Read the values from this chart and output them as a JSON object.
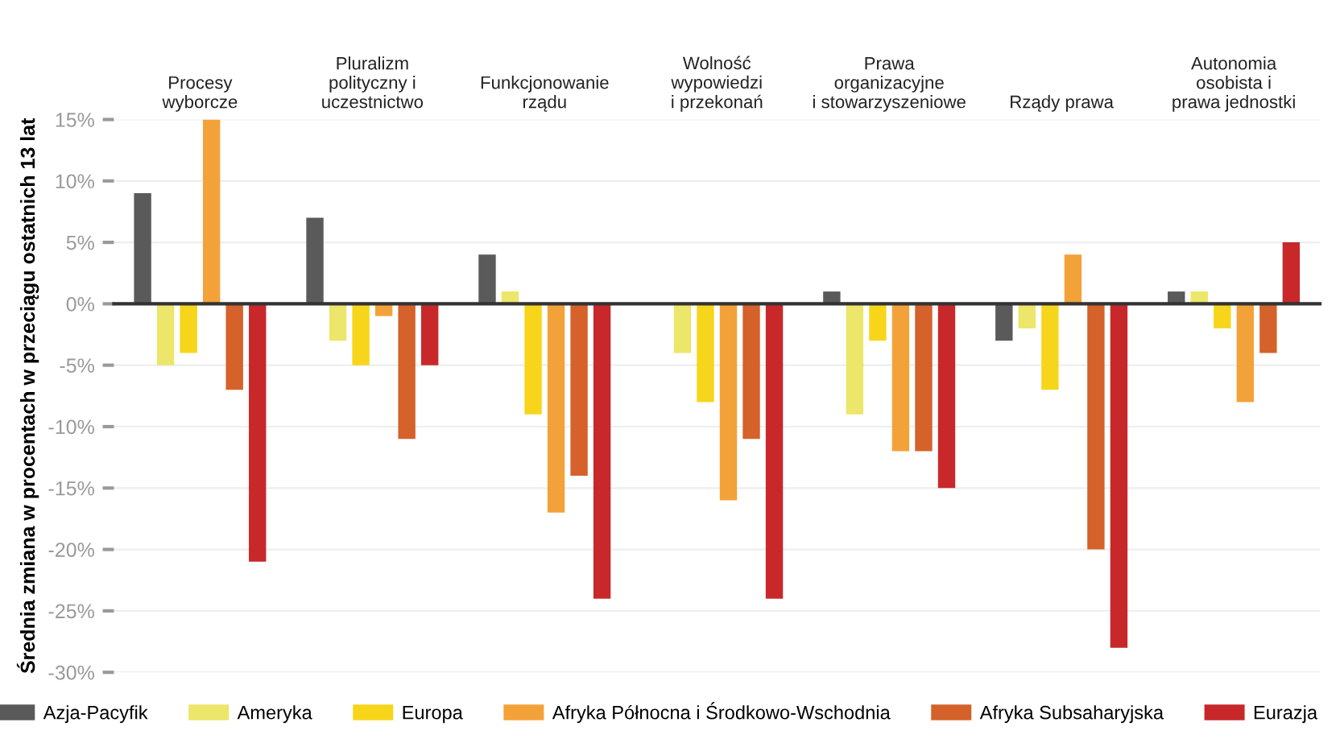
{
  "chart_data": {
    "type": "bar",
    "ylabel": "Średnia zmiana w procentach w przeciągu ostatnich 13 lat",
    "categories": [
      "Procesy\nwyborcze",
      "Pluralizm\npolityczny i\nuczestnictwo",
      "Funkcjonowanie\nrządu",
      "Wolność\nwypowiedzi\ni przekonań",
      "Prawa\norganizacyjne\ni stowarzyszeniowe",
      "Rządy prawa",
      "Autonomia\nosobista i\nprawa jednostki"
    ],
    "series": [
      {
        "name": "Azja-Pacyfik",
        "color": "#5a5a5a",
        "values": [
          9,
          7,
          4,
          0,
          1,
          -3,
          1
        ]
      },
      {
        "name": "Ameryka",
        "color": "#ece66a",
        "values": [
          -5,
          -3,
          1,
          -4,
          -9,
          -2,
          1
        ]
      },
      {
        "name": "Europa",
        "color": "#f7d51a",
        "values": [
          -4,
          -5,
          -9,
          -8,
          -3,
          -7,
          -2
        ]
      },
      {
        "name": "Afryka Północna i Środkowo-Wschodnia",
        "color": "#f3a23a",
        "values": [
          15,
          -1,
          -17,
          -16,
          -12,
          4,
          -8
        ]
      },
      {
        "name": "Afryka Subsaharyjska",
        "color": "#d4622a",
        "values": [
          -7,
          -11,
          -14,
          -11,
          -12,
          -20,
          -4
        ]
      },
      {
        "name": "Eurazja",
        "color": "#c8282a",
        "values": [
          -21,
          -5,
          -24,
          -24,
          -15,
          -28,
          5
        ]
      }
    ],
    "ylim": [
      -30,
      15
    ],
    "yticks": [
      {
        "value": 15,
        "label": "15%"
      },
      {
        "value": 10,
        "label": "10%"
      },
      {
        "value": 5,
        "label": "5%"
      },
      {
        "value": 0,
        "label": "0%"
      },
      {
        "value": -5,
        "label": "-5%"
      },
      {
        "value": -10,
        "label": "-10%"
      },
      {
        "value": -15,
        "label": "-15%"
      },
      {
        "value": -20,
        "label": "-20%"
      },
      {
        "value": -25,
        "label": "-25%"
      },
      {
        "value": -30,
        "label": "-30%"
      }
    ],
    "grid": "y",
    "legend": "bottom"
  }
}
